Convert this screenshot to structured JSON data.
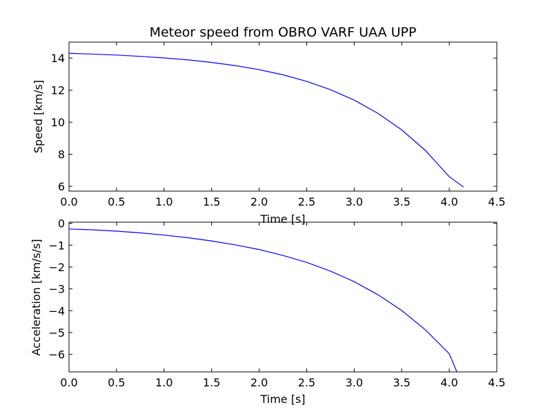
{
  "chart_data": [
    {
      "type": "line",
      "title": "Meteor speed from  OBRO VARF UAA UPP",
      "xlabel": "Time [s]",
      "ylabel": "Speed [km/s]",
      "xlim": [
        0.0,
        4.5
      ],
      "ylim": [
        5.7,
        15.0
      ],
      "xticks": [
        "0.0",
        "0.5",
        "1.0",
        "1.5",
        "2.0",
        "2.5",
        "3.0",
        "3.5",
        "4.0",
        "4.5"
      ],
      "yticks": [
        "6",
        "8",
        "10",
        "12",
        "14"
      ],
      "grid": false,
      "line_color": "#0000ff",
      "series": [
        {
          "x": [
            0.0,
            0.25,
            0.5,
            0.75,
            1.0,
            1.25,
            1.5,
            1.75,
            2.0,
            2.25,
            2.5,
            2.75,
            3.0,
            3.25,
            3.5,
            3.75,
            4.0,
            4.15
          ],
          "values": [
            14.3,
            14.25,
            14.19,
            14.11,
            14.01,
            13.89,
            13.73,
            13.53,
            13.28,
            12.96,
            12.55,
            12.03,
            11.38,
            10.55,
            9.52,
            8.23,
            6.6,
            5.95
          ]
        }
      ]
    },
    {
      "type": "line",
      "xlabel": "Time [s]",
      "ylabel": "Acceleration [km/s/s]",
      "xlim": [
        0.0,
        4.5
      ],
      "ylim": [
        -6.8,
        0.05
      ],
      "xticks": [
        "0.0",
        "0.5",
        "1.0",
        "1.5",
        "2.0",
        "2.5",
        "3.0",
        "3.5",
        "4.0",
        "4.5"
      ],
      "yticks": [
        "0",
        "−1",
        "−2",
        "−3",
        "−4",
        "−5",
        "−6"
      ],
      "grid": false,
      "line_color": "#0000ff",
      "series": [
        {
          "x": [
            0.0,
            0.25,
            0.5,
            0.75,
            1.0,
            1.25,
            1.5,
            1.75,
            2.0,
            2.25,
            2.5,
            2.75,
            3.0,
            3.25,
            3.5,
            3.75,
            4.0,
            4.08
          ],
          "values": [
            -0.26,
            -0.3,
            -0.36,
            -0.44,
            -0.54,
            -0.66,
            -0.81,
            -0.99,
            -1.2,
            -1.47,
            -1.79,
            -2.19,
            -2.67,
            -3.27,
            -3.99,
            -4.88,
            -5.97,
            -6.8
          ]
        }
      ]
    }
  ]
}
